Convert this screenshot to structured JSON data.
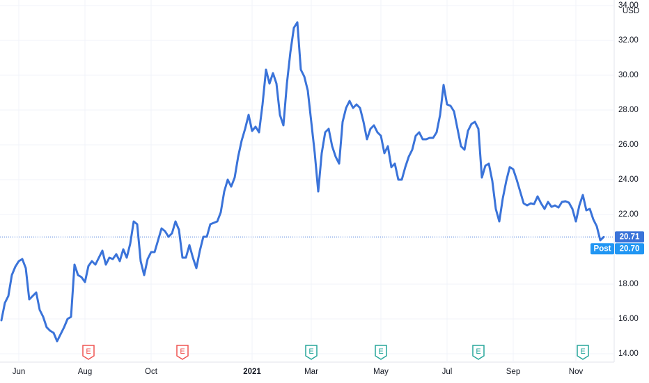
{
  "chart_data": {
    "type": "line",
    "currency": "USD",
    "categories": [
      null,
      null,
      null,
      null,
      null,
      "Jun",
      null,
      null,
      null,
      null,
      null,
      null,
      null,
      null,
      null,
      null,
      null,
      null,
      null,
      null,
      null,
      null,
      null,
      null,
      "Aug",
      null,
      null,
      null,
      null,
      null,
      null,
      null,
      null,
      null,
      null,
      null,
      null,
      null,
      null,
      null,
      null,
      null,
      null,
      "Oct",
      null,
      null,
      null,
      null,
      null,
      null,
      null,
      null,
      null,
      null,
      null,
      null,
      null,
      null,
      null,
      null,
      null,
      null,
      null,
      null,
      null,
      null,
      null,
      null,
      null,
      null,
      null,
      null,
      "2021",
      null,
      null,
      null,
      null,
      null,
      null,
      null,
      null,
      null,
      null,
      null,
      null,
      null,
      null,
      null,
      null,
      "Mar",
      null,
      null,
      null,
      null,
      null,
      null,
      null,
      null,
      null,
      null,
      null,
      null,
      null,
      null,
      null,
      null,
      null,
      null,
      null,
      "May",
      null,
      null,
      null,
      null,
      null,
      null,
      null,
      null,
      null,
      null,
      null,
      null,
      null,
      null,
      null,
      null,
      null,
      null,
      "Jul",
      null,
      null,
      null,
      null,
      null,
      null,
      null,
      null,
      null,
      null,
      null,
      null,
      null,
      null,
      null,
      null,
      null,
      null,
      "Sep",
      null,
      null,
      null,
      null,
      null,
      null,
      null,
      null,
      null,
      null,
      null,
      null,
      null,
      null,
      null,
      null,
      null,
      "Nov",
      null,
      null,
      null,
      null,
      null,
      null,
      null,
      null
    ],
    "series": [
      {
        "color": "#3a73d9",
        "values": [
          15.92,
          16.92,
          17.32,
          18.52,
          19.0,
          19.32,
          19.44,
          18.92,
          17.12,
          17.32,
          17.52,
          16.52,
          16.12,
          15.52,
          15.32,
          15.2,
          14.72,
          15.12,
          15.52,
          16.0,
          16.12,
          19.12,
          18.52,
          18.4,
          18.12,
          19.04,
          19.32,
          19.12,
          19.52,
          19.92,
          19.12,
          19.52,
          19.44,
          19.72,
          19.32,
          20.0,
          19.52,
          20.32,
          21.6,
          21.44,
          19.32,
          18.52,
          19.44,
          19.84,
          19.84,
          20.52,
          21.2,
          21.04,
          20.72,
          20.92,
          21.6,
          21.12,
          19.52,
          19.52,
          20.24,
          19.52,
          18.92,
          19.92,
          20.72,
          20.72,
          21.44,
          21.52,
          21.6,
          22.12,
          23.32,
          24.0,
          23.6,
          24.12,
          25.32,
          26.24,
          26.92,
          27.72,
          26.8,
          27.04,
          26.72,
          28.32,
          30.32,
          29.52,
          30.12,
          29.52,
          27.72,
          27.12,
          29.52,
          31.32,
          32.72,
          33.04,
          30.32,
          29.92,
          29.12,
          27.32,
          25.52,
          23.32,
          25.52,
          26.72,
          26.92,
          25.92,
          25.32,
          24.92,
          27.32,
          28.12,
          28.52,
          28.12,
          28.32,
          28.12,
          27.32,
          26.32,
          26.92,
          27.12,
          26.72,
          26.52,
          25.52,
          25.92,
          24.72,
          24.92,
          24.0,
          24.0,
          24.72,
          25.32,
          25.72,
          26.52,
          26.72,
          26.32,
          26.32,
          26.4,
          26.4,
          26.72,
          27.72,
          29.44,
          28.32,
          28.24,
          27.92,
          26.92,
          25.92,
          25.72,
          26.8,
          27.2,
          27.32,
          26.92,
          24.12,
          24.8,
          24.92,
          23.92,
          22.32,
          21.6,
          22.92,
          23.92,
          24.72,
          24.6,
          24.0,
          23.32,
          22.64,
          22.52,
          22.64,
          22.6,
          23.04,
          22.64,
          22.32,
          22.72,
          22.44,
          22.52,
          22.4,
          22.72,
          22.76,
          22.68,
          22.32,
          21.6,
          22.52,
          23.12,
          22.24,
          22.32,
          21.72,
          21.32,
          20.52,
          20.71
        ]
      }
    ],
    "ylim": [
      13.52,
      34.32
    ],
    "yticks": [
      {
        "value": 14,
        "label": "14.00"
      },
      {
        "value": 16,
        "label": "16.00"
      },
      {
        "value": 18,
        "label": "18.00"
      },
      {
        "value": 22,
        "label": "22.00"
      },
      {
        "value": 24,
        "label": "24.00"
      },
      {
        "value": 26,
        "label": "26.00"
      },
      {
        "value": 28,
        "label": "28.00"
      },
      {
        "value": 30,
        "label": "30.00"
      },
      {
        "value": 32,
        "label": "32.00"
      },
      {
        "value": 34,
        "label": "34.00"
      }
    ],
    "grid": true,
    "last_price": {
      "value": 20.71,
      "label": "20.71",
      "color": "#3a73d9"
    },
    "post_price": {
      "name": "Post",
      "value": 20.7,
      "label": "20.70",
      "color": "#2196f3"
    },
    "earnings": [
      {
        "at": 25,
        "label": "E",
        "color": "#ef5350"
      },
      {
        "at": 52,
        "label": "E",
        "color": "#ef5350"
      },
      {
        "at": 89,
        "label": "E",
        "color": "#26a69a"
      },
      {
        "at": 109,
        "label": "E",
        "color": "#26a69a"
      },
      {
        "at": 137,
        "label": "E",
        "color": "#26a69a"
      },
      {
        "at": 167,
        "label": "E",
        "color": "#26a69a"
      }
    ]
  }
}
